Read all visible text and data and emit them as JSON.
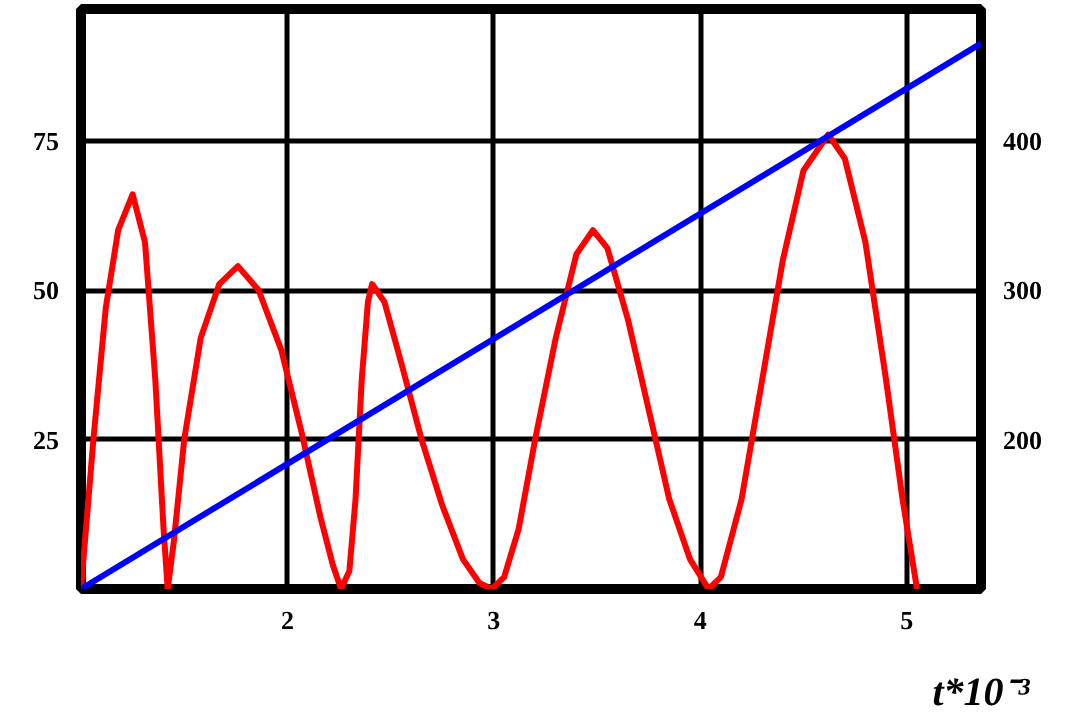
{
  "chart_data": {
    "type": "line",
    "xlabel": "t*10⁻³",
    "xlim": [
      1.0,
      5.36
    ],
    "xticks": [
      2,
      3,
      4,
      5
    ],
    "ylim": [
      0,
      97
    ],
    "yticks": [
      25,
      50,
      75
    ],
    "y2lim": [
      100,
      488
    ],
    "y2ticks": [
      200,
      300,
      400
    ],
    "grid": true,
    "marker": "none",
    "line_style": "solid",
    "series": [
      {
        "color": "#ff0000",
        "x": [
          1.0,
          1.06,
          1.12,
          1.18,
          1.25,
          1.31,
          1.36,
          1.4,
          1.42,
          1.45,
          1.5,
          1.58,
          1.67,
          1.76,
          1.86,
          1.97,
          2.07,
          2.16,
          2.22,
          2.26,
          2.3,
          2.33,
          2.36,
          2.39,
          2.41,
          2.47,
          2.55,
          2.65,
          2.75,
          2.85,
          2.93,
          2.99,
          3.05,
          3.12,
          3.2,
          3.3,
          3.4,
          3.48,
          3.55,
          3.65,
          3.75,
          3.85,
          3.95,
          4.04,
          4.1,
          4.2,
          4.3,
          4.4,
          4.5,
          4.62,
          4.7,
          4.8,
          4.9,
          4.98,
          5.05
        ],
        "values": [
          0,
          25,
          47,
          60,
          66,
          58,
          35,
          10,
          0,
          8,
          25,
          42,
          51,
          54,
          50,
          40,
          26,
          12,
          4,
          0,
          3,
          15,
          35,
          48,
          51,
          48,
          38,
          25,
          14,
          5,
          1,
          0,
          2,
          10,
          25,
          42,
          56,
          60,
          57,
          45,
          30,
          15,
          5,
          0,
          2,
          15,
          35,
          55,
          70,
          76,
          72,
          58,
          35,
          15,
          0
        ]
      },
      {
        "color": "#0000ff",
        "axis": "y2",
        "x": [
          1.0,
          5.36
        ],
        "values": [
          100,
          465
        ]
      }
    ]
  }
}
